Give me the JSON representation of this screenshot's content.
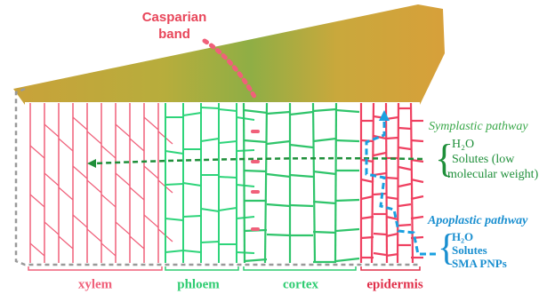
{
  "casparian_band": {
    "lines": [
      "Casparian",
      "band"
    ]
  },
  "tissues": [
    "xylem",
    "phloem",
    "cortex",
    "epidermis"
  ],
  "symplastic": {
    "title": "Symplastic pathway",
    "items": [
      "H₂O",
      "Solutes (low",
      "molecular weight)"
    ]
  },
  "apoplastic": {
    "title": "Apoplastic pathway",
    "items": [
      "H₂O",
      "Solutes",
      "SMA PNPs"
    ]
  }
}
